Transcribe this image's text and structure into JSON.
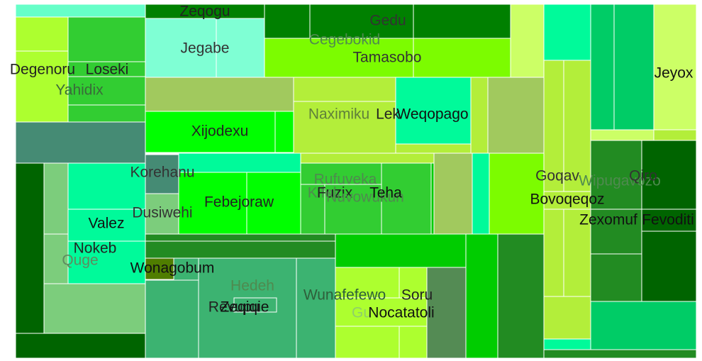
{
  "chart_data": {
    "type": "treemap",
    "cells": [
      {
        "label": "",
        "color": "#66ffc8"
      },
      {
        "label": "Zeqogu",
        "color": "#008000"
      },
      {
        "label": "",
        "color": "#adff2f"
      },
      {
        "label": "",
        "color": "#32cd32"
      },
      {
        "label": "Jegabe",
        "color": "#7fffd4"
      },
      {
        "label": "",
        "color": "#7fffd4"
      },
      {
        "label": "",
        "color": "#008000"
      },
      {
        "label": "Gedu",
        "color": "#008000"
      },
      {
        "label": "",
        "color": "#008000"
      },
      {
        "label": "",
        "color": "#ccff66"
      },
      {
        "label": "",
        "color": "#00fa9a"
      },
      {
        "label": "",
        "color": "#00cc66"
      },
      {
        "label": "",
        "color": "#00cc66"
      },
      {
        "label": "Jeyox",
        "color": "#ccff66"
      },
      {
        "label": "Degenoru",
        "color": "#adff2f"
      },
      {
        "label": "Loseki",
        "color": "#32cd32"
      },
      {
        "label": "Yahidix",
        "color": "#32cd32"
      },
      {
        "label": "Cegebokid",
        "color": "#7cfc00"
      },
      {
        "label": "Tamasobo",
        "color": "#7cfc00"
      },
      {
        "label": "",
        "color": "#a1c95e"
      },
      {
        "label": "",
        "color": "#b3ee3a"
      },
      {
        "label": "Naximiku",
        "color": "#b3ee3a"
      },
      {
        "label": "Lek",
        "color": "#00fa9a"
      },
      {
        "label": "Weqopago",
        "color": "#00fa9a"
      },
      {
        "label": "",
        "color": "#b3ee3a"
      },
      {
        "label": "",
        "color": "#a1c95e"
      },
      {
        "label": "",
        "color": "#b3ee3a"
      },
      {
        "label": "",
        "color": "#b3ee3a"
      },
      {
        "label": "",
        "color": "#ccff66"
      },
      {
        "label": "",
        "color": "#458b74"
      },
      {
        "label": "Xijodexu",
        "color": "#00ff00"
      },
      {
        "label": "",
        "color": "#00ff00"
      },
      {
        "label": "Korehanu",
        "color": "#458b74"
      },
      {
        "label": "",
        "color": "#00fa9a"
      },
      {
        "label": "",
        "color": "#b3ee3a"
      },
      {
        "label": "",
        "color": "#a1c95e"
      },
      {
        "label": "",
        "color": "#00fa9a"
      },
      {
        "label": "",
        "color": "#7cfc00"
      },
      {
        "label": "",
        "color": "#006400"
      },
      {
        "label": "",
        "color": "#7ccd7c"
      },
      {
        "label": "",
        "color": "#00fa9a"
      },
      {
        "label": "Dusiwehi",
        "color": "#7ccd7c"
      },
      {
        "label": "",
        "color": "#00ff00"
      },
      {
        "label": "Febejoraw",
        "color": "#00ff00"
      },
      {
        "label": "Rufuveka",
        "color": "#32cd32"
      },
      {
        "label": "Kifolo",
        "color": "#32cd32"
      },
      {
        "label": "Fuzix",
        "color": "#32cd32"
      },
      {
        "label": "Nuvowukun",
        "color": "#32cd32"
      },
      {
        "label": "Teha",
        "color": "#32cd32"
      },
      {
        "label": "",
        "color": "#32cd32"
      },
      {
        "label": "",
        "color": "#00cc00"
      },
      {
        "label": "Valez",
        "color": "#00fa9a"
      },
      {
        "label": "Nokeb",
        "color": "#00fa9a"
      },
      {
        "label": "Quge",
        "color": "#7ccd7c"
      },
      {
        "label": "",
        "color": "#7ccd7c"
      },
      {
        "label": "",
        "color": "#006400"
      },
      {
        "label": "",
        "color": "#228b22"
      },
      {
        "label": "",
        "color": "#228b22"
      },
      {
        "label": "",
        "color": "#00cc00"
      },
      {
        "label": "",
        "color": "#00cc00"
      },
      {
        "label": "",
        "color": "#228b22"
      },
      {
        "label": "Wonagobum",
        "color": "#3cb371"
      },
      {
        "label": "",
        "color": "#4f7d00"
      },
      {
        "label": "",
        "color": "#3cb371"
      },
      {
        "label": "Hedeh",
        "color": "#5f8b5f"
      },
      {
        "label": "Revupu",
        "color": "#3cb371"
      },
      {
        "label": "Zeqiqie",
        "color": "#3cb371"
      },
      {
        "label": "Wunafefewo",
        "color": "#3cb371"
      },
      {
        "label": "Gu",
        "color": "#adff2f"
      },
      {
        "label": "Soru",
        "color": "#adff2f"
      },
      {
        "label": "Nocatatoli",
        "color": "#adff2f"
      },
      {
        "label": "",
        "color": "#548b54"
      },
      {
        "label": "",
        "color": "#b3ee3a"
      },
      {
        "label": "Goqav",
        "color": "#b3ee3a"
      },
      {
        "label": "Bovoqeqoz",
        "color": "#b3ee3a"
      },
      {
        "label": "Wipugavozo",
        "color": "#228b22"
      },
      {
        "label": "Qiro",
        "color": "#006400"
      },
      {
        "label": "Zexomuf",
        "color": "#228b22"
      },
      {
        "label": "Fevoditi",
        "color": "#006400"
      },
      {
        "label": "",
        "color": "#228b22"
      },
      {
        "label": "",
        "color": "#00cc66"
      },
      {
        "label": "",
        "color": "#b3ee3a"
      },
      {
        "label": "",
        "color": "#00fa9a"
      },
      {
        "label": "",
        "color": "#228b22"
      },
      {
        "label": "",
        "color": "#006400"
      }
    ]
  }
}
